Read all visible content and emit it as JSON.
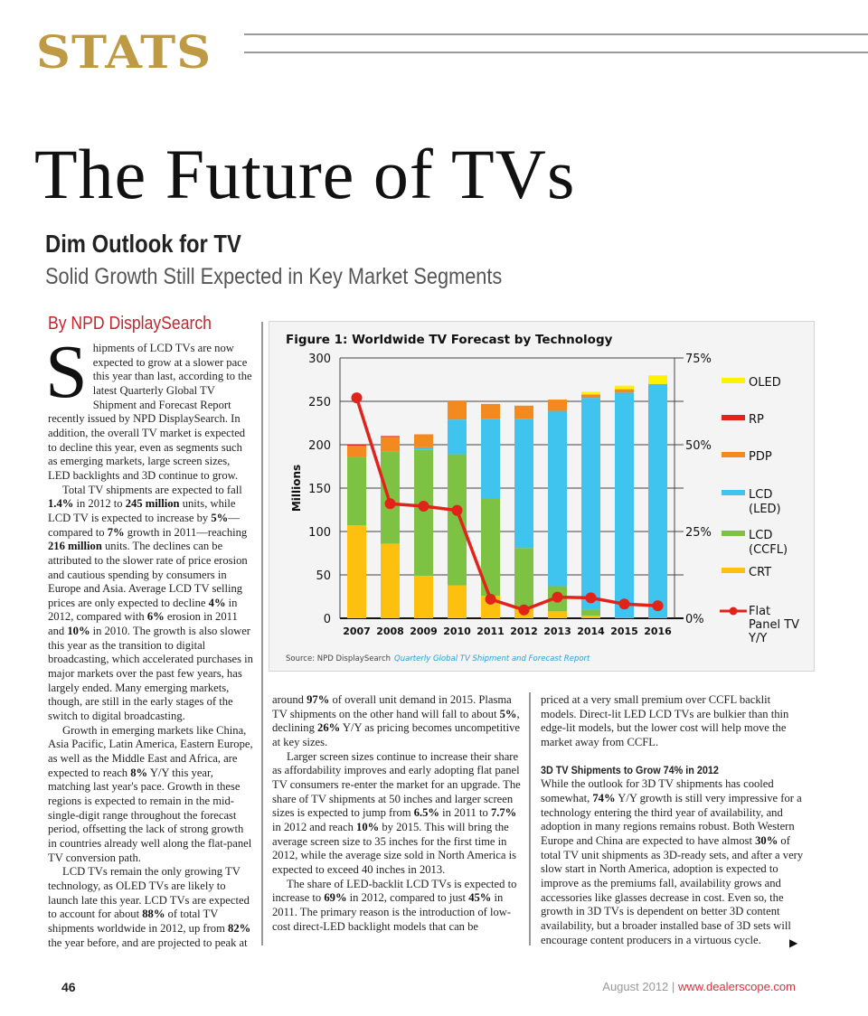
{
  "header": {
    "section": "STATS"
  },
  "title": "The Future of TVs",
  "headline": "Dim Outlook for TV",
  "subhead": "Solid Growth Still Expected in Key Market Segments",
  "byline": "By NPD DisplaySearch",
  "article": {
    "col1": [
      {
        "dropcap": "S",
        "runs": [
          {
            "t": "hipments of LCD TVs are now expected to grow at a slower pace this year than last, according to the latest Quarterly Global TV Shipment and Forecast Report recently issued by NPD DisplaySearch. In addition, the overall TV market is expected to decline this year, even as segments such as emerging markets, large screen sizes, LED backlights and 3D continue to grow."
          }
        ]
      },
      {
        "runs": [
          {
            "t": "Total TV shipments are expected to fall "
          },
          {
            "t": "1.4%",
            "b": true
          },
          {
            "t": " in 2012 to "
          },
          {
            "t": "245 million",
            "b": true
          },
          {
            "t": " units, while LCD TV is expected to increase by "
          },
          {
            "t": "5%",
            "b": true
          },
          {
            "t": "—compared to "
          },
          {
            "t": "7%",
            "b": true
          },
          {
            "t": " growth in 2011—reaching "
          },
          {
            "t": "216 million",
            "b": true
          },
          {
            "t": " units. The declines can be attributed to the slower rate of price erosion and cautious spending by consumers in Europe and Asia. Average LCD TV selling prices are only expected to decline "
          },
          {
            "t": "4%",
            "b": true
          },
          {
            "t": " in 2012, compared with "
          },
          {
            "t": "6%",
            "b": true
          },
          {
            "t": " erosion in 2011 and "
          },
          {
            "t": "10%",
            "b": true
          },
          {
            "t": " in 2010. The growth is also slower this year as the transition to digital broadcasting, which accelerated purchases in major markets over the past few years, has largely ended. Many emerging markets, though, are still in the early stages of the switch to digital broadcasting."
          }
        ]
      },
      {
        "runs": [
          {
            "t": "Growth in emerging markets like China, Asia Pacific, Latin America, Eastern Europe, as well as the Middle East and Africa, are expected to reach "
          },
          {
            "t": "8%",
            "b": true
          },
          {
            "t": " Y/Y this year, matching last year's pace. Growth in these regions is expected to remain in the mid-single-digit range throughout the forecast period, offsetting the lack of strong growth in countries already well along the flat-panel TV conversion path."
          }
        ]
      },
      {
        "runs": [
          {
            "t": "LCD TVs remain the only growing TV technology, as OLED TVs are likely to launch late this year. LCD TVs are expected to account for about "
          },
          {
            "t": "88%",
            "b": true
          },
          {
            "t": " of total TV shipments worldwide in 2012, up from "
          },
          {
            "t": "82%",
            "b": true
          },
          {
            "t": " the year before, and are projected to peak at"
          }
        ]
      }
    ],
    "col2": [
      {
        "noindent": true,
        "runs": [
          {
            "t": "around "
          },
          {
            "t": "97%",
            "b": true
          },
          {
            "t": " of overall unit demand in 2015. Plasma TV shipments on the other hand will fall to about "
          },
          {
            "t": "5%",
            "b": true
          },
          {
            "t": ", declining "
          },
          {
            "t": "26%",
            "b": true
          },
          {
            "t": " Y/Y as pricing becomes uncompetitive at key sizes."
          }
        ]
      },
      {
        "runs": [
          {
            "t": "Larger screen sizes continue to increase their share as affordability improves and early adopting flat panel TV consumers re-enter the market for an upgrade. The share of TV shipments at 50 inches and larger screen sizes is expected to jump from "
          },
          {
            "t": "6.5%",
            "b": true
          },
          {
            "t": " in 2011 to "
          },
          {
            "t": "7.7%",
            "b": true
          },
          {
            "t": " in 2012 and reach "
          },
          {
            "t": "10%",
            "b": true
          },
          {
            "t": " by 2015. This will bring the average screen size to 35 inches for the first time in 2012, while the average size sold in North America is expected to exceed 40 inches in 2013."
          }
        ]
      },
      {
        "runs": [
          {
            "t": "The share of LED-backlit LCD TVs is expected to increase to "
          },
          {
            "t": "69%",
            "b": true
          },
          {
            "t": " in 2012, compared to just "
          },
          {
            "t": "45%",
            "b": true
          },
          {
            "t": " in 2011. The primary reason is the introduction of low-cost direct-LED backlight models that can be"
          }
        ]
      }
    ],
    "col3": [
      {
        "noindent": true,
        "runs": [
          {
            "t": "priced at a very small premium over CCFL backlit models. Direct-lit LED LCD TVs are bulkier than thin edge-lit models, but the lower cost will help move the market away from CCFL."
          }
        ]
      },
      {
        "subhead": "3D TV Shipments to Grow 74% in 2012"
      },
      {
        "noindent": true,
        "runs": [
          {
            "t": "While the outlook for 3D TV shipments has cooled somewhat, "
          },
          {
            "t": "74%",
            "b": true
          },
          {
            "t": " Y/Y growth is still very impressive for a technology entering the third year of availability, and adoption in many regions remains robust. Both Western Europe and China are expected to have almost "
          },
          {
            "t": "30%",
            "b": true
          },
          {
            "t": " of total TV unit shipments as 3D-ready sets, and after a very slow start in North America, adoption is expected to improve as the premiums fall, availability grows and accessories like glasses decrease in cost. Even so, the growth in 3D TVs is dependent on better 3D content availability, but a broader installed base of 3D sets will encourage content producers in a virtuous cycle."
          }
        ]
      }
    ],
    "continue_icon": "arrow-right-icon"
  },
  "footer": {
    "page_number": "46",
    "issue": "August 2012",
    "separator": "|",
    "url": "www.dealerscope.com"
  },
  "chart_data": {
    "type": "bar",
    "stacked": true,
    "title": "Figure 1: Worldwide TV Forecast by Technology",
    "ylabel": "Millions",
    "ylim": [
      0,
      300
    ],
    "yticks": [
      "0",
      "50",
      "100",
      "150",
      "200",
      "250",
      "300"
    ],
    "y2lim": [
      0,
      75
    ],
    "y2ticks": [
      "0%",
      "25%",
      "50%",
      "75%"
    ],
    "categories": [
      "2007",
      "2008",
      "2009",
      "2010",
      "2011",
      "2012",
      "2013",
      "2014",
      "2015",
      "2016"
    ],
    "series": [
      {
        "name": "CRT",
        "color": "#fdc00f",
        "values": [
          107,
          86,
          49,
          38,
          26,
          12,
          8,
          3,
          0,
          0
        ]
      },
      {
        "name": "LCD (CCFL)",
        "color": "#7dc243",
        "values": [
          79,
          106,
          145,
          151,
          112,
          69,
          29,
          7,
          0,
          0
        ]
      },
      {
        "name": "LCD (LED)",
        "color": "#3fc4f0",
        "values": [
          0,
          0,
          3,
          40,
          92,
          149,
          202,
          244,
          260,
          270
        ]
      },
      {
        "name": "PDP",
        "color": "#f38a20",
        "values": [
          13,
          17,
          15,
          21,
          17,
          15,
          13,
          4,
          4,
          0
        ]
      },
      {
        "name": "RP",
        "color": "#e2231a",
        "values": [
          1,
          1,
          0,
          0,
          0,
          0,
          0,
          0,
          0,
          0
        ]
      },
      {
        "name": "OLED",
        "color": "#fff200",
        "values": [
          0,
          0,
          0,
          0,
          0,
          0,
          0,
          3,
          4,
          10
        ]
      }
    ],
    "line": {
      "name": "Flat Panel TV Y/Y",
      "axis": "right",
      "unit": "%",
      "color": "#e2231a",
      "values": [
        63.5,
        33,
        32.3,
        31.1,
        5.5,
        2.4,
        6.1,
        5.9,
        4.1,
        3.6
      ]
    },
    "legend": [
      "OLED",
      "RP",
      "PDP",
      "LCD (LED)",
      "LCD (CCFL)",
      "CRT",
      "Flat Panel TV Y/Y"
    ],
    "legend_position": "right",
    "grid": true,
    "source_label": "Source: NPD DisplaySearch",
    "source_title": "Quarterly Global TV Shipment and Forecast Report"
  }
}
